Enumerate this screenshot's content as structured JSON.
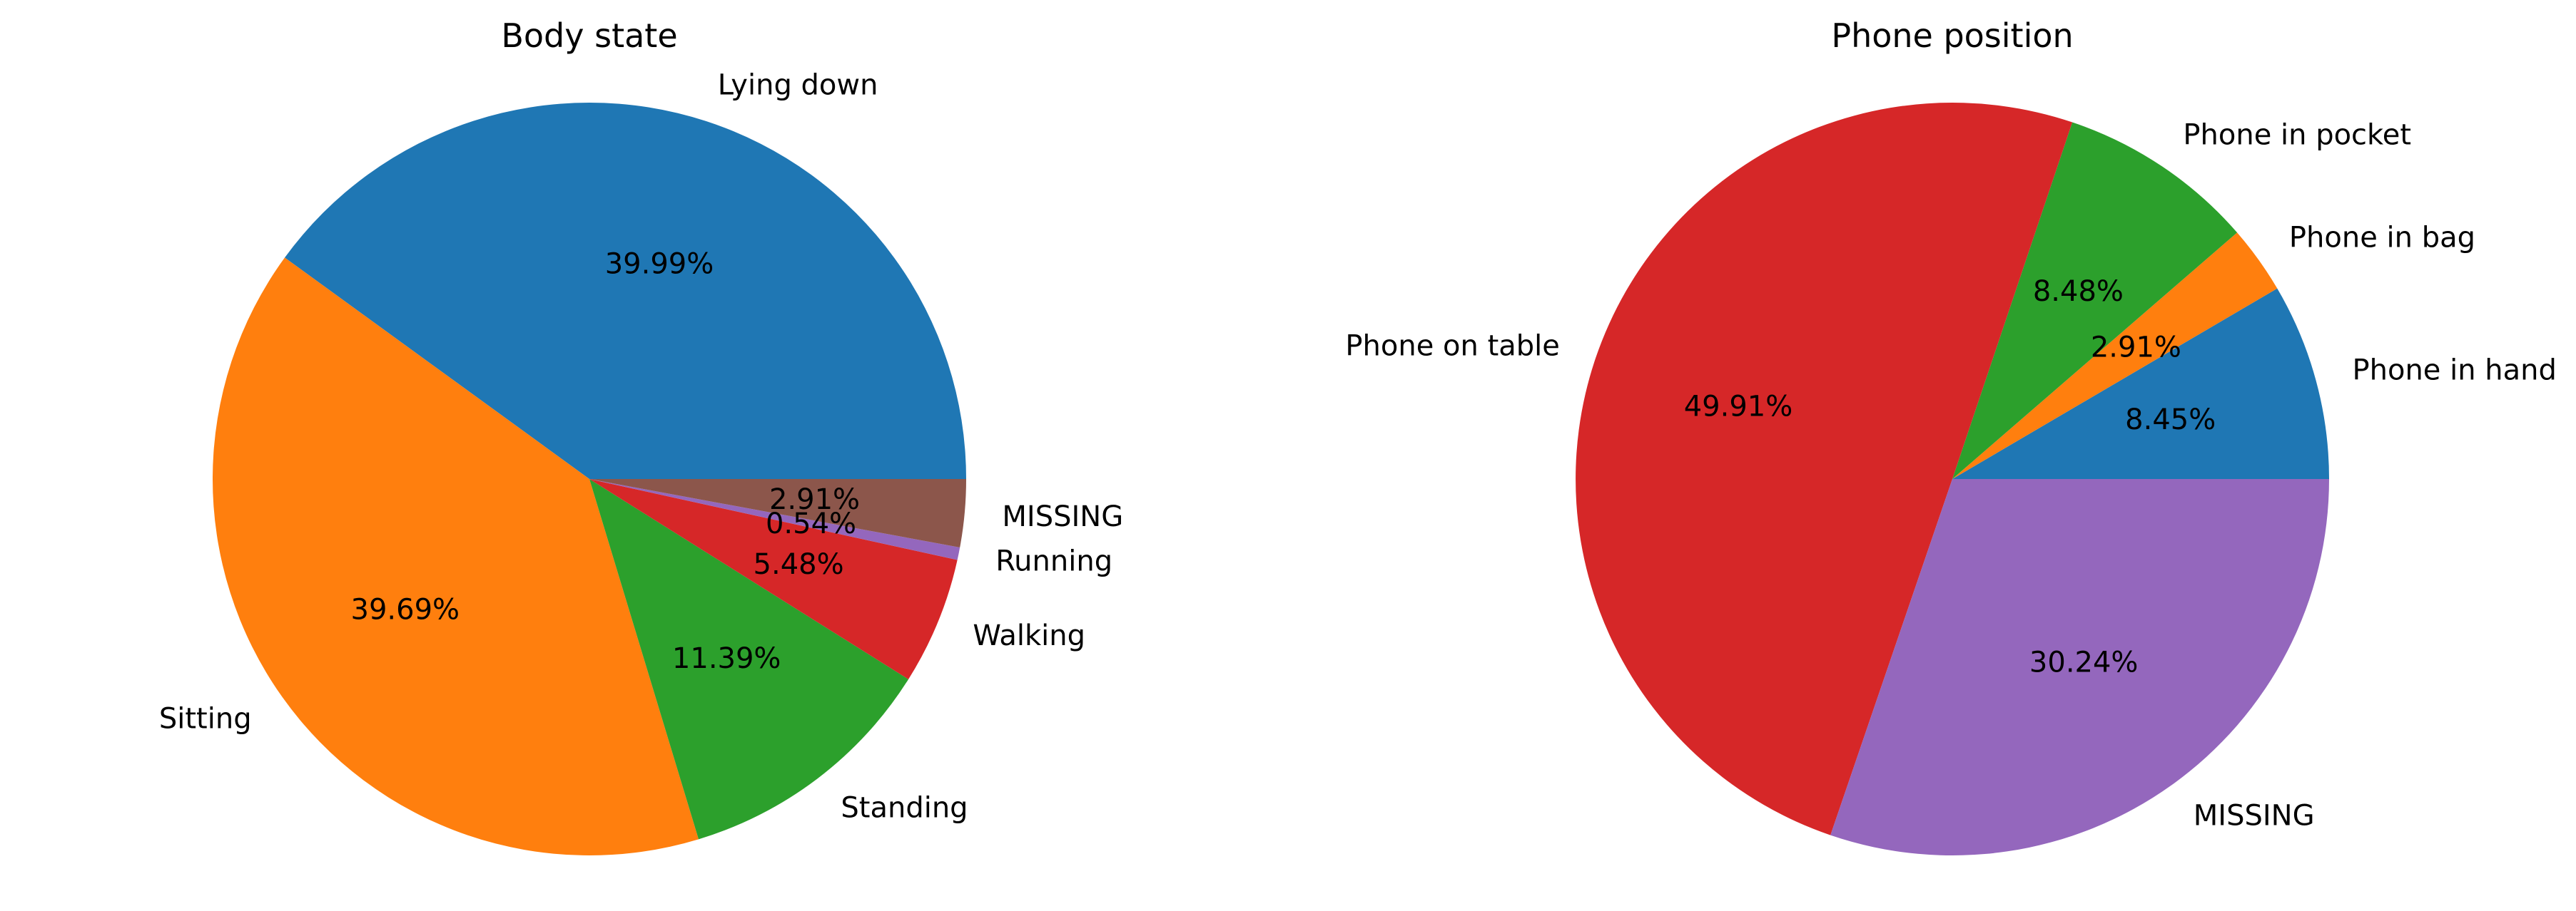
{
  "chart_data": [
    {
      "type": "pie",
      "title": "Body state",
      "slices": [
        {
          "label": "Lying down",
          "value": 39.99,
          "display": "39.99%",
          "color": "#1f77b4"
        },
        {
          "label": "Sitting",
          "value": 39.69,
          "display": "39.69%",
          "color": "#ff7f0e"
        },
        {
          "label": "Standing",
          "value": 11.39,
          "display": "11.39%",
          "color": "#2ca02c"
        },
        {
          "label": "Walking",
          "value": 5.48,
          "display": "5.48%",
          "color": "#d62728"
        },
        {
          "label": "Running",
          "value": 0.54,
          "display": "0.54%",
          "color": "#9467bd"
        },
        {
          "label": "MISSING",
          "value": 2.91,
          "display": "2.91%",
          "color": "#8c564b"
        }
      ],
      "start_angle_deg": 0,
      "direction": "counterclockwise"
    },
    {
      "type": "pie",
      "title": "Phone position",
      "slices": [
        {
          "label": "Phone in hand",
          "value": 8.45,
          "display": "8.45%",
          "color": "#1f77b4"
        },
        {
          "label": "Phone in bag",
          "value": 2.91,
          "display": "2.91%",
          "color": "#ff7f0e"
        },
        {
          "label": "Phone in pocket",
          "value": 8.48,
          "display": "8.48%",
          "color": "#2ca02c"
        },
        {
          "label": "Phone on table",
          "value": 49.91,
          "display": "49.91%",
          "color": "#d62728"
        },
        {
          "label": "MISSING",
          "value": 30.24,
          "display": "30.24%",
          "color": "#9467bd"
        }
      ],
      "start_angle_deg": 0,
      "direction": "counterclockwise"
    }
  ]
}
